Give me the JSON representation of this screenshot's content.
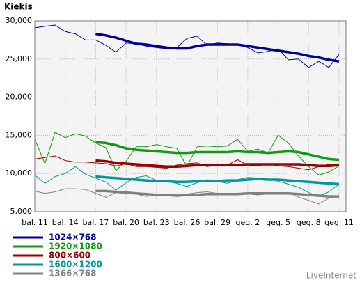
{
  "chart_data": {
    "type": "line",
    "title": "Kiekis",
    "footer": "LiveInternet",
    "categories": [
      "bal. 11",
      null,
      null,
      "bal. 14",
      null,
      null,
      "bal. 17",
      null,
      null,
      "bal. 20",
      null,
      null,
      "bal. 23",
      null,
      null,
      "bal. 26",
      null,
      null,
      "bal. 29",
      null,
      null,
      "geg. 2",
      null,
      null,
      "geg. 5",
      null,
      null,
      "geg. 8",
      null,
      null,
      "geg. 11"
    ],
    "ylim": [
      5000,
      30000
    ],
    "yticks": [
      {
        "value": 5000,
        "label": "5,000"
      },
      {
        "value": 10000,
        "label": "10,000"
      },
      {
        "value": 15000,
        "label": "15,000"
      },
      {
        "value": 20000,
        "label": "20,000"
      },
      {
        "value": 25000,
        "label": "25,000"
      },
      {
        "value": 30000,
        "label": "30,000"
      }
    ],
    "grid": true,
    "series": [
      {
        "name": "1024×768",
        "color": "#000099",
        "values": [
          29100,
          29300,
          29450,
          28600,
          28300,
          27500,
          27500,
          26800,
          25900,
          27100,
          27000,
          26700,
          26500,
          26350,
          26500,
          27700,
          28000,
          26800,
          27100,
          27000,
          26900,
          26500,
          25800,
          26000,
          26350,
          24900,
          25000,
          23900,
          24700,
          23900,
          25600
        ],
        "trend": [
          null,
          null,
          null,
          null,
          null,
          null,
          28300,
          28100,
          27800,
          27400,
          27000,
          26900,
          26700,
          26500,
          26400,
          26400,
          26700,
          26900,
          26900,
          26900,
          26900,
          26700,
          26500,
          26300,
          26100,
          25900,
          25700,
          25400,
          25200,
          24900,
          24700
        ]
      },
      {
        "name": "1920×1080",
        "color": "#119911",
        "values": [
          14500,
          11300,
          15400,
          14700,
          15200,
          14900,
          14000,
          13400,
          10400,
          11600,
          13500,
          13500,
          13800,
          13500,
          13300,
          10900,
          13500,
          13600,
          13500,
          13600,
          14500,
          12900,
          13200,
          12700,
          15000,
          14000,
          12300,
          10900,
          9800,
          10200,
          11000
        ],
        "trend": [
          null,
          null,
          null,
          null,
          null,
          null,
          14100,
          14000,
          13700,
          13300,
          13100,
          13000,
          12900,
          12800,
          12700,
          12700,
          12800,
          12800,
          12800,
          12800,
          12900,
          12800,
          12800,
          12700,
          12800,
          12900,
          12800,
          12500,
          12200,
          11900,
          11800
        ]
      },
      {
        "name": "800×600",
        "color": "#990000",
        "values": [
          11900,
          12100,
          12300,
          11700,
          11500,
          11500,
          11400,
          11300,
          11000,
          11300,
          10900,
          10900,
          10800,
          10700,
          11100,
          11300,
          11400,
          10900,
          11200,
          11100,
          11800,
          11100,
          11000,
          11300,
          11000,
          10900,
          10700,
          10500,
          10900,
          11200,
          11000
        ],
        "trend": [
          null,
          null,
          null,
          null,
          null,
          null,
          11700,
          11600,
          11400,
          11300,
          11200,
          11100,
          11000,
          10900,
          10900,
          11000,
          11100,
          11100,
          11100,
          11100,
          11100,
          11200,
          11200,
          11200,
          11200,
          11200,
          11200,
          11100,
          11000,
          11000,
          11100
        ]
      },
      {
        "name": "1600×1200",
        "color": "#009999",
        "values": [
          9800,
          8700,
          9600,
          10000,
          10900,
          9900,
          9400,
          8900,
          7800,
          8800,
          9500,
          9700,
          9100,
          9000,
          8700,
          8300,
          8800,
          9200,
          9000,
          8700,
          9200,
          9500,
          9400,
          9300,
          9000,
          8600,
          8200,
          7500,
          7000,
          7600,
          8600
        ],
        "trend": [
          null,
          null,
          null,
          null,
          null,
          null,
          9600,
          9500,
          9400,
          9300,
          9200,
          9100,
          9000,
          9000,
          8900,
          8900,
          9000,
          9000,
          9000,
          9100,
          9100,
          9200,
          9300,
          9200,
          9200,
          9100,
          9000,
          8900,
          8800,
          8700,
          8600
        ]
      },
      {
        "name": "1366×768",
        "color": "#808080",
        "values": [
          7700,
          7400,
          7600,
          8000,
          8000,
          7900,
          7400,
          6900,
          7500,
          7700,
          7300,
          7000,
          7200,
          7300,
          7100,
          7300,
          7500,
          7600,
          7400,
          7300,
          7400,
          7300,
          7200,
          7300,
          7300,
          7500,
          6900,
          6500,
          6000,
          6800,
          7100
        ],
        "trend": [
          null,
          null,
          null,
          null,
          null,
          null,
          7700,
          7700,
          7600,
          7500,
          7400,
          7300,
          7200,
          7200,
          7100,
          7200,
          7200,
          7300,
          7300,
          7300,
          7300,
          7400,
          7400,
          7400,
          7400,
          7400,
          7300,
          7200,
          7100,
          7000,
          7000
        ]
      }
    ]
  }
}
